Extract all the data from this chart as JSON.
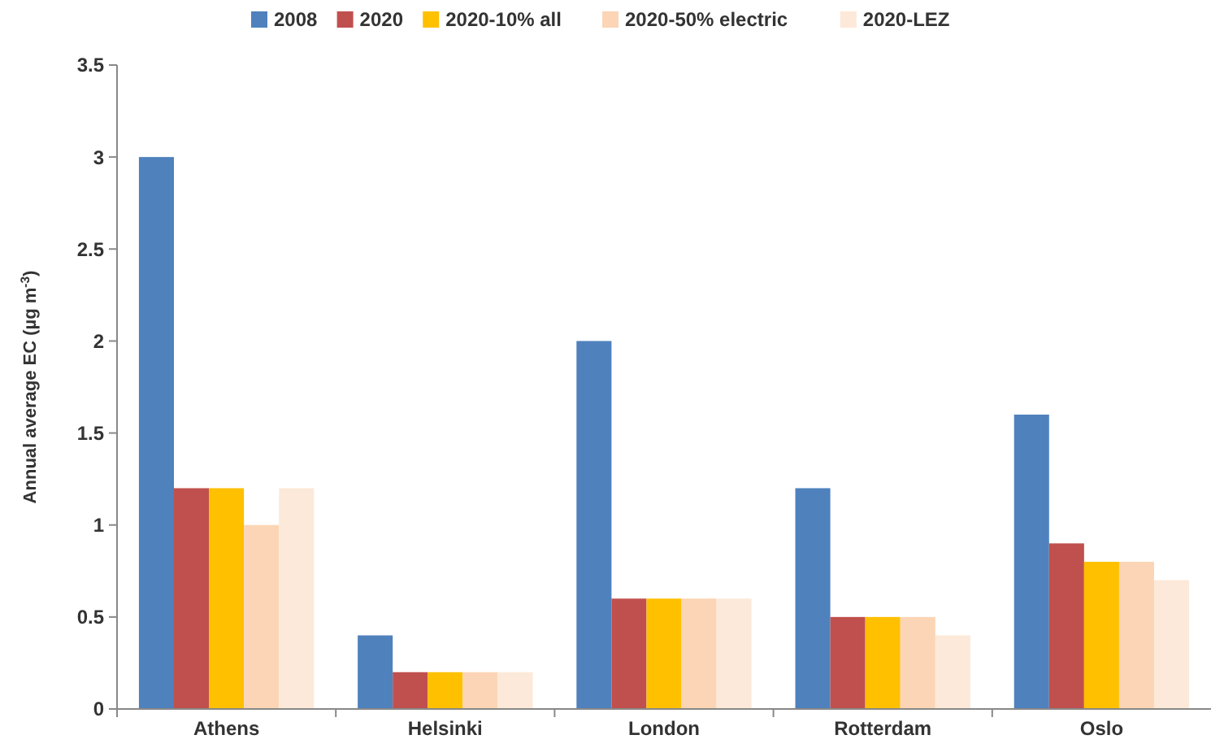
{
  "chart_data": {
    "type": "bar",
    "ylabel": "Annual average EC (µg m$^{-3}$)",
    "categories": [
      "Athens",
      "Helsinki",
      "London",
      "Rotterdam",
      "Oslo"
    ],
    "series": [
      {
        "name": "2008",
        "color": "#4f81bd",
        "values": [
          3.0,
          0.4,
          2.0,
          1.2,
          1.6
        ]
      },
      {
        "name": "2020",
        "color": "#c0504d",
        "values": [
          1.2,
          0.2,
          0.6,
          0.5,
          0.9
        ]
      },
      {
        "name": "2020-10% all",
        "color": "#ffc000",
        "values": [
          1.2,
          0.2,
          0.6,
          0.5,
          0.8
        ]
      },
      {
        "name": "2020-50% electric",
        "color": "#fbd5b5",
        "values": [
          1.0,
          0.2,
          0.6,
          0.5,
          0.8
        ]
      },
      {
        "name": "2020-LEZ",
        "color": "#fde9d9",
        "values": [
          1.2,
          0.2,
          0.6,
          0.4,
          0.7
        ]
      }
    ],
    "ylim": [
      0,
      3.5
    ],
    "yticks": [
      0,
      0.5,
      1,
      1.5,
      2,
      2.5,
      3,
      3.5
    ],
    "grid": false,
    "legend": "top"
  }
}
